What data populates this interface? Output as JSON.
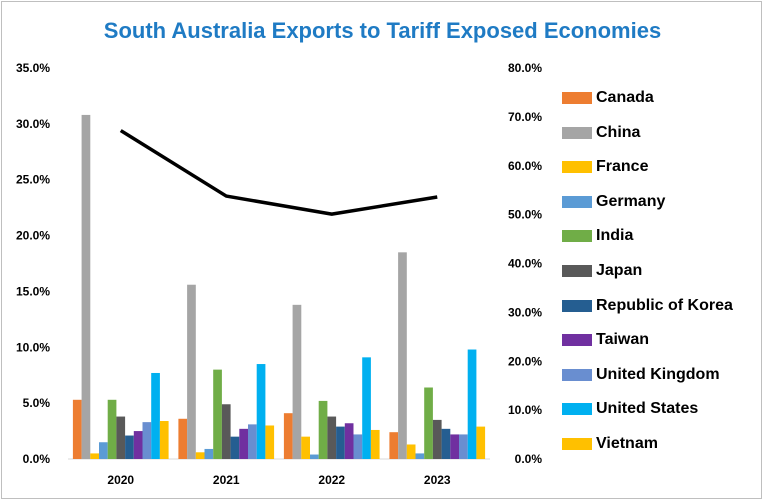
{
  "chart_data": {
    "type": "bar",
    "title": "South Australia Exports to Tariff Exposed Economies",
    "categories": [
      "2020",
      "2021",
      "2022",
      "2023"
    ],
    "series": [
      {
        "name": "Canada",
        "color": "#ed7d31",
        "values": [
          5.3,
          3.6,
          4.1,
          2.4
        ]
      },
      {
        "name": "China",
        "color": "#a5a5a5",
        "values": [
          30.8,
          15.6,
          13.8,
          18.5
        ]
      },
      {
        "name": "France",
        "color": "#ffc000",
        "values": [
          0.5,
          0.6,
          2.0,
          1.3
        ]
      },
      {
        "name": "Germany",
        "color": "#5b9bd5",
        "values": [
          1.5,
          0.9,
          0.4,
          0.5
        ]
      },
      {
        "name": "India",
        "color": "#70ad47",
        "values": [
          5.3,
          8.0,
          5.2,
          6.4
        ]
      },
      {
        "name": "Japan",
        "color": "#595959",
        "values": [
          3.8,
          4.9,
          3.8,
          3.5
        ]
      },
      {
        "name": "Republic of Korea",
        "color": "#255e91",
        "values": [
          2.1,
          2.0,
          2.9,
          2.7
        ]
      },
      {
        "name": "Taiwan",
        "color": "#7030a0",
        "values": [
          2.5,
          2.7,
          3.2,
          2.2
        ]
      },
      {
        "name": "United Kingdom",
        "color": "#698ed0",
        "values": [
          3.3,
          3.1,
          2.2,
          2.2
        ]
      },
      {
        "name": "United States",
        "color": "#00b0f0",
        "values": [
          7.7,
          8.5,
          9.1,
          9.8
        ]
      },
      {
        "name": "Vietnam",
        "color": "#ffc000",
        "values": [
          3.4,
          3.0,
          2.6,
          2.9
        ]
      }
    ],
    "line_series": {
      "axis": "right",
      "color": "#000000",
      "values": [
        67.2,
        53.8,
        50.1,
        53.6
      ]
    },
    "y_left": {
      "min": 0,
      "max": 35,
      "step": 5
    },
    "y_right": {
      "min": 0,
      "max": 80,
      "step": 10
    },
    "legend_position": "right"
  }
}
